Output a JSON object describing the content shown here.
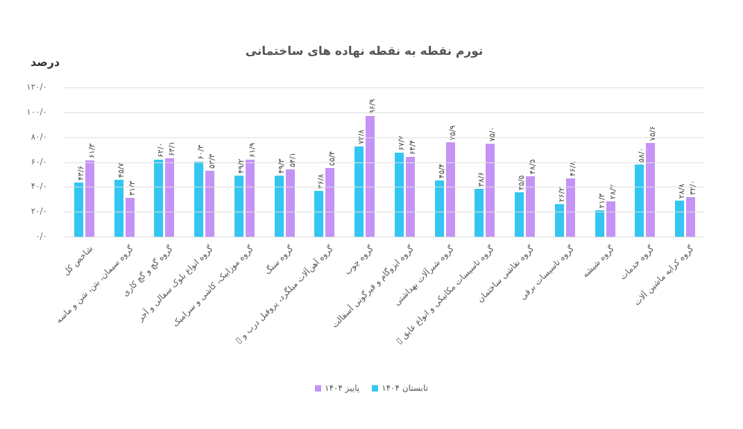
{
  "chart_data": {
    "type": "bar",
    "title": "تورم نقطه به نقطه نهاده های ساختمانی",
    "xlabel": "",
    "ylabel": "درصد",
    "ylim": [
      0,
      120
    ],
    "yticks": [
      "۰/۰",
      "۲۰/۰",
      "۴۰/۰",
      "۶۰/۰",
      "۸۰/۰",
      "۱۰۰/۰",
      "۱۲۰/۰"
    ],
    "grid": true,
    "legend_position": "bottom",
    "categories": [
      "شاخص کل",
      "گروه سیمان، بتن، شن و ماسه",
      "گروه گچ و گچ کاری",
      "گروه انواع بلوک سفالی و آجر",
      "گروه موزاییک، کاشی و سرامیک",
      "گروه سنگ",
      "گروه آهن‌آلات میلگرد، پروفیل درب و ▯",
      "گروه چوب",
      "گروه ایزوگام و قیرگونی آسفالت",
      "گروه شیرآلات بهداشتی",
      "گروه تاسیسات مکانیکی و انواع عایق ▯",
      "گروه نقاشی ساختمان",
      "گروه تاسیسات برقی",
      "گروه شیشه",
      "گروه خدمات",
      "گروه کرایه ماشین آلات"
    ],
    "series": [
      {
        "name": "تابستان ۱۴۰۴",
        "color": "#33C6F2",
        "values": [
          43.6,
          45.7,
          62.0,
          60.3,
          49.2,
          49.3,
          36.8,
          72.8,
          67.7,
          45.4,
          38.6,
          35.5,
          26.2,
          21.3,
          58.0,
          28.8
        ],
        "labels": [
          "۴۳/۶",
          "۴۵/۷",
          "۶۲/۰",
          "۶۰/۳",
          "۴۹/۲",
          "۴۹/۳",
          "۳۶/۸",
          "۷۲/۸",
          "۶۷/۷",
          "۴۵/۴",
          "۳۸/۶",
          "۳۵/۵",
          "۲۶/۲",
          "۲۱/۳",
          "۵۸/۰",
          "۲۸/۸"
        ]
      },
      {
        "name": "پاییز ۱۴۰۴",
        "color": "#C593F5",
        "values": [
          61.3,
          31.3,
          63.1,
          53.3,
          61.9,
          54.1,
          55.4,
          96.9,
          64.4,
          75.9,
          75.0,
          48.5,
          46.8,
          28.2,
          75.6,
          32.0
        ],
        "labels": [
          "۶۱/۳",
          "۳۱/۳",
          "۶۳/۱",
          "۵۳/۳",
          "۶۱/۹",
          "۵۴/۱",
          "۵۵/۴",
          "۹۶/۹",
          "۶۴/۴",
          "۷۵/۹",
          "۷۵/۰",
          "۴۸/۵",
          "۴۶/۸",
          "۲۸/۲",
          "۷۵/۶",
          "۳۲/۰"
        ]
      }
    ]
  },
  "legend": [
    {
      "label": "تابستان ۱۴۰۴",
      "color": "#33C6F2"
    },
    {
      "label": "پاییز ۱۴۰۴",
      "color": "#C593F5"
    }
  ]
}
